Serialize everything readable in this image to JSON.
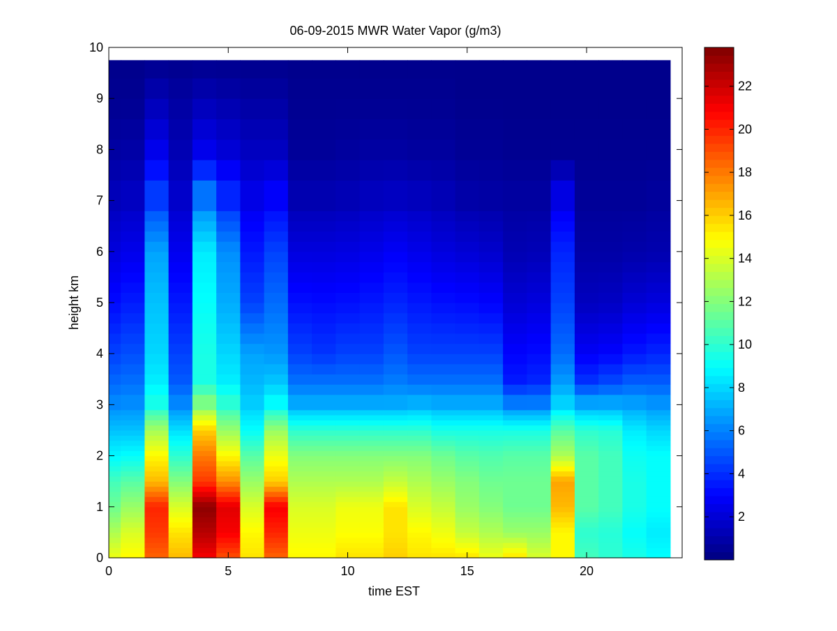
{
  "chart_data": {
    "type": "heatmap",
    "title": "06-09-2015 MWR Water Vapor (g/m3)",
    "xlabel": "time EST",
    "ylabel": "height km",
    "xlim": [
      0,
      24
    ],
    "ylim": [
      0,
      10
    ],
    "x_ticks": [
      0,
      5,
      10,
      15,
      20
    ],
    "y_ticks": [
      0,
      1,
      2,
      3,
      4,
      5,
      6,
      7,
      8,
      9,
      10
    ],
    "colormap": "jet",
    "color_range": [
      0,
      23.8
    ],
    "colorbar_ticks": [
      2,
      4,
      6,
      8,
      10,
      12,
      14,
      16,
      18,
      20,
      22
    ],
    "grid": false,
    "time_step_hours": 1,
    "time_centers": [
      0,
      1,
      2,
      3,
      4,
      5,
      6,
      7,
      8,
      9,
      10,
      11,
      12,
      13,
      14,
      15,
      16,
      17,
      18,
      19,
      20,
      21,
      22,
      23
    ],
    "max_height_km": 9.75,
    "profile_heights_km": [
      0,
      0.5,
      1,
      1.5,
      2,
      2.5,
      3,
      3.5,
      4,
      5,
      6,
      7,
      8,
      9,
      9.75
    ],
    "profiles": [
      [
        14.5,
        13,
        11.5,
        10.5,
        8.8,
        7.5,
        6.2,
        5.3,
        4.5,
        3.2,
        2.2,
        1.4,
        0.8,
        0.4,
        0.3
      ],
      [
        15,
        14,
        12.5,
        11,
        9,
        7.5,
        6.3,
        5.5,
        4.8,
        3.6,
        2.5,
        1.6,
        0.9,
        0.4,
        0.3
      ],
      [
        18.5,
        19.5,
        20,
        16.5,
        15,
        12.8,
        9.5,
        8.5,
        8,
        7.5,
        6.8,
        4.5,
        2.5,
        1.2,
        0.3
      ],
      [
        16.5,
        15.5,
        14,
        12,
        10,
        8.2,
        6.2,
        5,
        4.5,
        3.5,
        2.6,
        1.8,
        1.2,
        0.8,
        0.3
      ],
      [
        21,
        22.5,
        23.5,
        19.5,
        18,
        16,
        12,
        9.5,
        9.5,
        9,
        8.5,
        6,
        2.5,
        1.2,
        0.3
      ],
      [
        19,
        21,
        21.5,
        17.5,
        15,
        12.5,
        10,
        8.5,
        8,
        7,
        6.3,
        4,
        2,
        1,
        0.3
      ],
      [
        15.5,
        15,
        14,
        12.5,
        11,
        9,
        7.8,
        7.2,
        6.8,
        4.5,
        3.5,
        2.5,
        1.5,
        0.8,
        0.3
      ],
      [
        18.5,
        20,
        21,
        16,
        14.5,
        12.5,
        9,
        7.5,
        6.5,
        5.5,
        4.5,
        3,
        1.5,
        0.8,
        0.3
      ],
      [
        15,
        14.5,
        14,
        13,
        12,
        10,
        7,
        5.5,
        4.5,
        3.3,
        2.2,
        1.2,
        0.6,
        0.4,
        0.3
      ],
      [
        15,
        14.5,
        14,
        13,
        12,
        10,
        7,
        5.5,
        4.2,
        3.2,
        2.2,
        1.2,
        0.6,
        0.4,
        0.3
      ],
      [
        15.5,
        14.8,
        14.5,
        13,
        12,
        10,
        7,
        5.5,
        4.5,
        3.3,
        2.3,
        1.3,
        0.7,
        0.4,
        0.3
      ],
      [
        15.5,
        14.8,
        14.5,
        13,
        12,
        10,
        7,
        5.5,
        4.5,
        3.5,
        2.5,
        1.5,
        0.8,
        0.4,
        0.3
      ],
      [
        16,
        15.5,
        15.5,
        13.5,
        12,
        10,
        7,
        5.8,
        5,
        3.8,
        2.8,
        1.6,
        0.8,
        0.4,
        0.3
      ],
      [
        15.5,
        15,
        14,
        13,
        12,
        10,
        7.2,
        5.5,
        4.5,
        3.5,
        2.5,
        1.5,
        0.7,
        0.4,
        0.3
      ],
      [
        15.5,
        14.5,
        13.5,
        12.5,
        11.5,
        9.5,
        7,
        5.5,
        4.5,
        3.3,
        2.2,
        1.3,
        0.7,
        0.4,
        0.3
      ],
      [
        15.5,
        13.5,
        12.5,
        12,
        11,
        9.5,
        7,
        5.5,
        4.5,
        3.2,
        2,
        1,
        0.5,
        0.3,
        0.3
      ],
      [
        14.5,
        13,
        12,
        11.5,
        10.8,
        9.5,
        7,
        5.5,
        4.5,
        3,
        1.8,
        0.9,
        0.5,
        0.3,
        0.3
      ],
      [
        15.5,
        12.5,
        11.5,
        11.5,
        11,
        9.5,
        6,
        3.5,
        3,
        2,
        1.2,
        0.8,
        0.4,
        0.3,
        0.3
      ],
      [
        14,
        12.5,
        11.5,
        11.5,
        11,
        9.5,
        6,
        3.8,
        3.2,
        2.2,
        1.3,
        0.8,
        0.4,
        0.3,
        0.3
      ],
      [
        15,
        15,
        16.5,
        17,
        13,
        11,
        8,
        6.5,
        5.5,
        4.5,
        3.8,
        2.5,
        0.4,
        0.3,
        0.3
      ],
      [
        10.5,
        10,
        11,
        11,
        11,
        10,
        7,
        4,
        2.8,
        1.5,
        0.9,
        0.6,
        0.4,
        0.3,
        0.3
      ],
      [
        10,
        9.8,
        10.5,
        10.5,
        10.5,
        9.8,
        7,
        4.5,
        3,
        1.6,
        0.9,
        0.6,
        0.4,
        0.3,
        0.3
      ],
      [
        9.5,
        9,
        9.5,
        9.5,
        9.2,
        8.5,
        6.8,
        5,
        3.5,
        2,
        1,
        0.6,
        0.4,
        0.3,
        0.3
      ],
      [
        9,
        8.5,
        9,
        9,
        9,
        8,
        6.5,
        5,
        3.8,
        2.2,
        1.1,
        0.7,
        0.4,
        0.3,
        0.3
      ]
    ]
  }
}
